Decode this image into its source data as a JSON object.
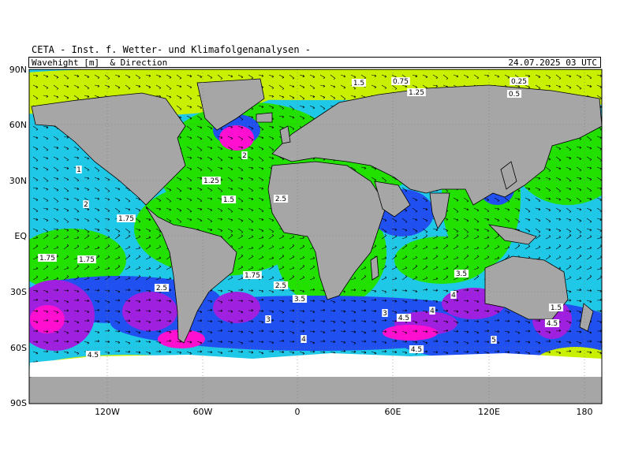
{
  "header": {
    "title": "CETA - Inst. f. Wetter- und Klimafolgenanalysen -",
    "variable": "Wavehight [m]  & Direction",
    "timestamp": "24.07.2025 03 UTC"
  },
  "axes": {
    "lat_labels": [
      "90N",
      "60N",
      "30N",
      "EQ",
      "30S",
      "60S",
      "90S"
    ],
    "lon_labels": [
      "120W",
      "60W",
      "0",
      "60E",
      "120E",
      "180"
    ]
  },
  "colors": {
    "land": "#a6a6a6",
    "ice": "#ffffff",
    "wave_low": "#c8f000",
    "wave_green": "#22e000",
    "wave_cyan": "#20c8e8",
    "wave_blue": "#2050f0",
    "wave_purple": "#a020e0",
    "wave_magenta": "#ff10d0"
  },
  "contour_labels": [
    "0.25",
    "0.5",
    "0.75",
    "1",
    "1.25",
    "1.5",
    "1.75",
    "2",
    "2.5",
    "3",
    "3.5",
    "4",
    "4.5",
    "5"
  ]
}
